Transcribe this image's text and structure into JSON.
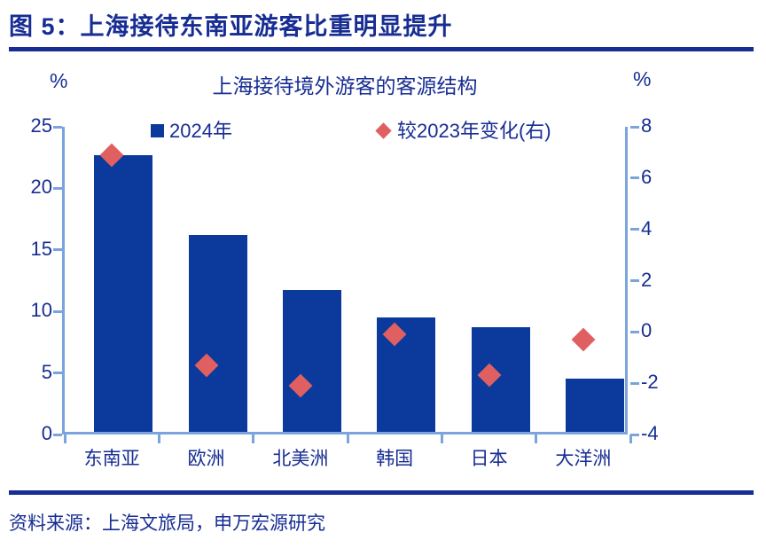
{
  "header": {
    "title": "图 5：上海接待东南亚游客比重明显提升"
  },
  "footer": {
    "source": "资料来源：上海文旅局，申万宏源研究"
  },
  "chart": {
    "title": "上海接待境外游客的客源结构",
    "left_unit": "%",
    "right_unit": "%",
    "legend": [
      {
        "label": "2024年",
        "marker": "square",
        "color": "#0C3A9C"
      },
      {
        "label": "较2023年变化(右)",
        "marker": "diamond",
        "color": "#E06062"
      }
    ]
  },
  "chart_data": {
    "type": "bar",
    "title": "上海接待境外游客的客源结构",
    "categories": [
      "东南亚",
      "欧洲",
      "北美洲",
      "韩国",
      "日本",
      "大洋洲"
    ],
    "series": [
      {
        "name": "2024年",
        "type": "bar",
        "axis": "left",
        "values": [
          22.5,
          16.0,
          11.5,
          9.3,
          8.5,
          4.3
        ]
      },
      {
        "name": "较2023年变化(右)",
        "type": "scatter",
        "axis": "right",
        "values": [
          6.9,
          -1.3,
          -2.1,
          -0.1,
          -1.7,
          -0.3
        ]
      }
    ],
    "left_axis": {
      "label": "%",
      "range": [
        0,
        25
      ],
      "ticks": [
        0,
        5,
        10,
        15,
        20,
        25
      ]
    },
    "right_axis": {
      "label": "%",
      "range": [
        -4,
        8
      ],
      "ticks": [
        -4,
        -2,
        0,
        2,
        4,
        6,
        8
      ]
    },
    "grid": false,
    "legend_position": "top"
  },
  "colors": {
    "bar": "#0C3A9C",
    "marker": "#E06062",
    "axis_line": "#7BA4DC",
    "text": "#172D93"
  }
}
